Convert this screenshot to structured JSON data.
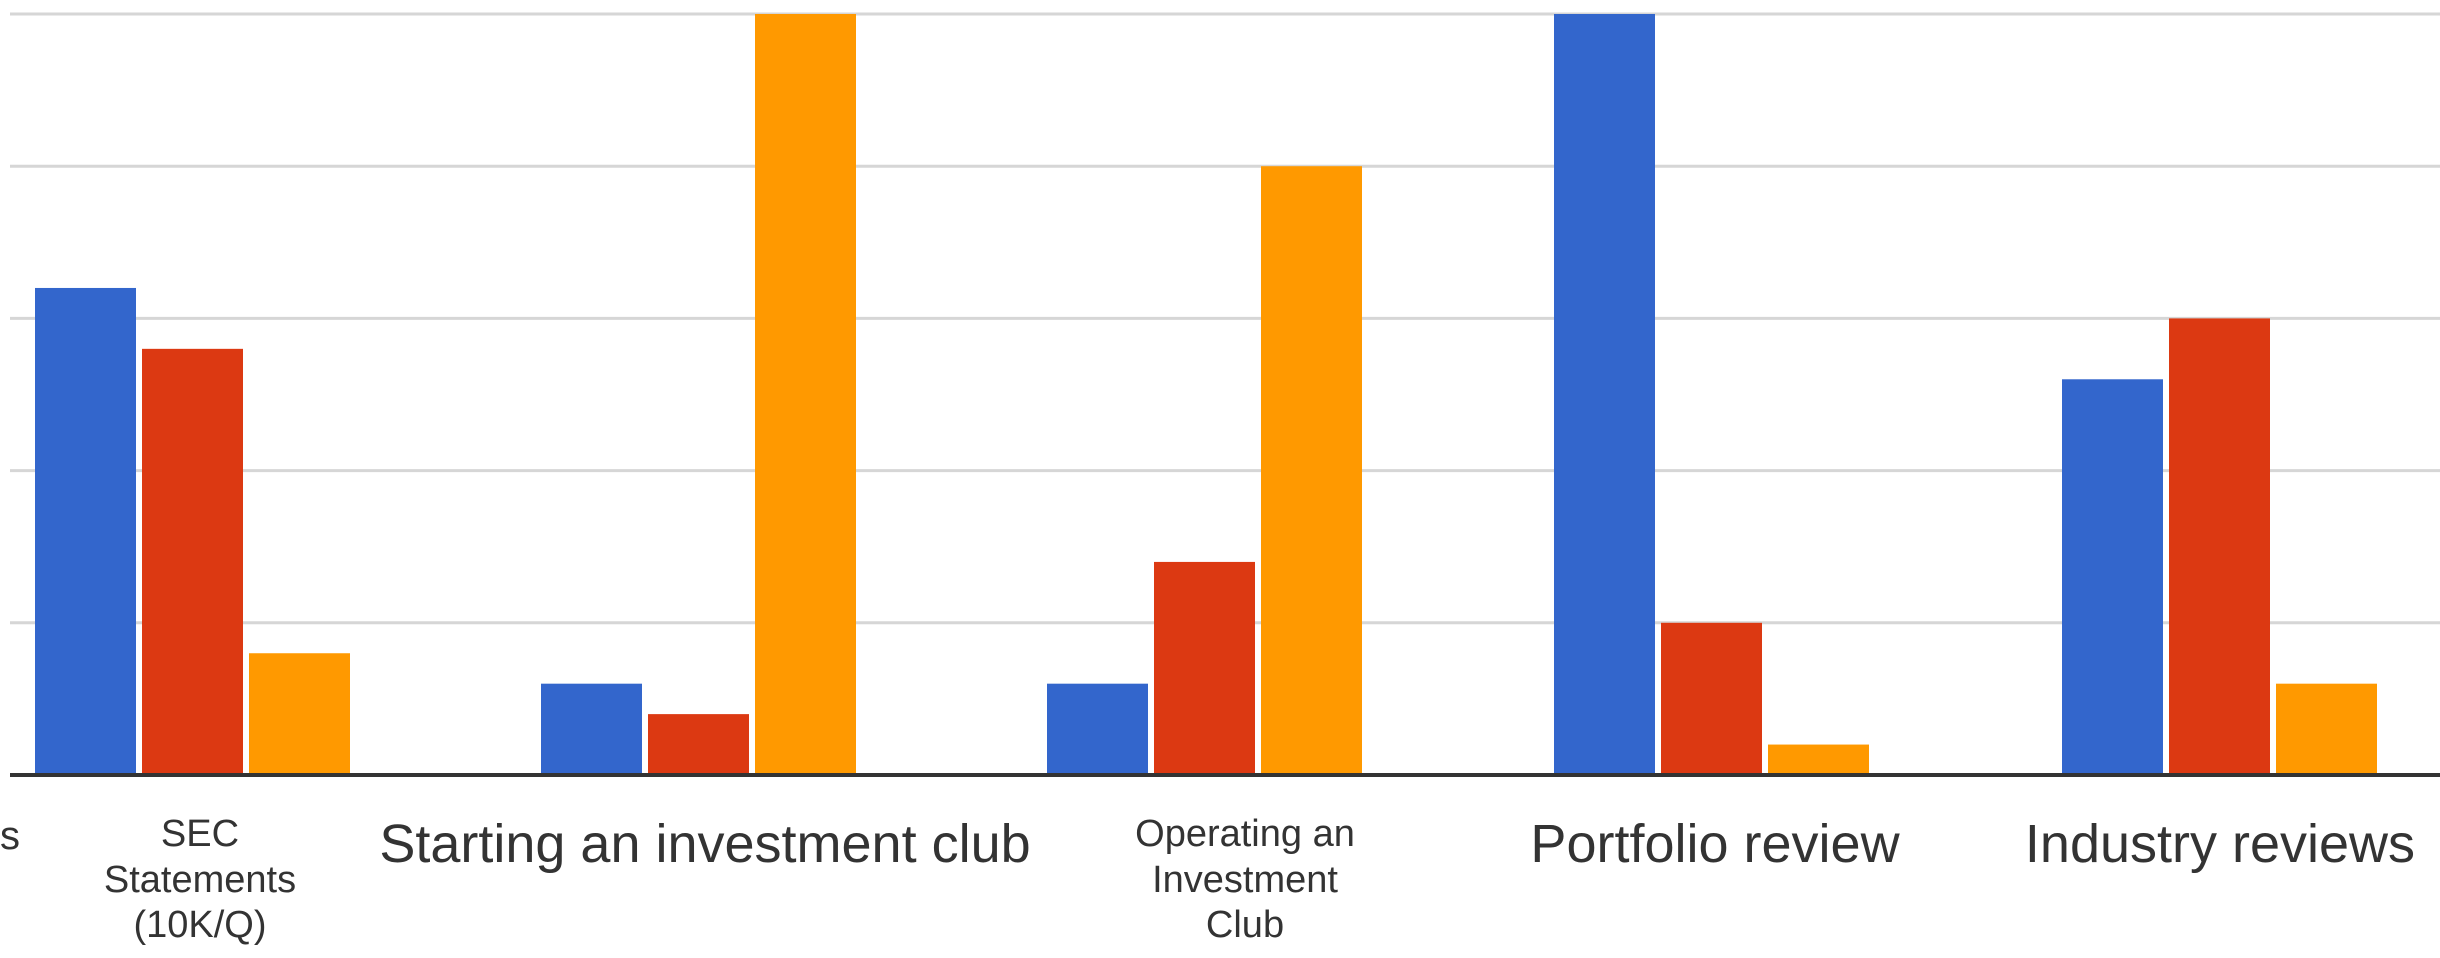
{
  "chart_data": {
    "type": "bar",
    "categories": [
      "s",
      "SEC Statements (10K/Q)",
      "Starting an investment club",
      "Operating an Investment Club",
      "Portfolio review",
      "Industry reviews"
    ],
    "series": [
      {
        "color": "#3366cc",
        "values": [
          null,
          3.2,
          0.6,
          0.6,
          5.0,
          2.6
        ]
      },
      {
        "color": "#dc3912",
        "values": [
          null,
          2.8,
          0.4,
          1.4,
          1.0,
          3.0
        ]
      },
      {
        "color": "#ff9900",
        "values": [
          null,
          0.8,
          5.0,
          4.0,
          0.2,
          0.6
        ]
      }
    ],
    "ylim": [
      0,
      5
    ],
    "grid": true,
    "legend": "none"
  }
}
